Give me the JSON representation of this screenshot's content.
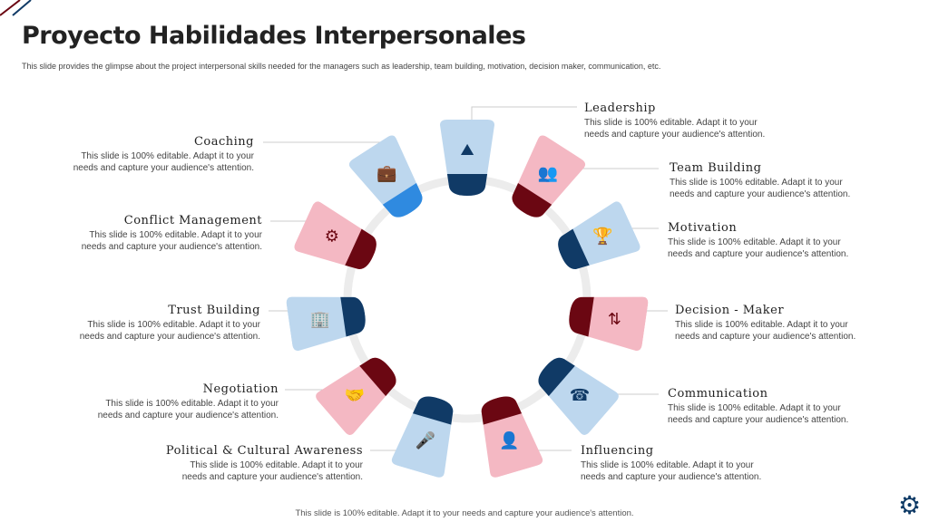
{
  "title": "Proyecto Habilidades Interpersonales",
  "subtitle": "This slide provides the glimpse about the project interpersonal skills needed for the managers such as leadership, team building, motivation, decision maker, communication, etc.",
  "footer": "This slide is 100% editable. Adapt it to your needs and capture your audience's attention.",
  "colors": {
    "blue_light": "#bdd7ee",
    "blue_dark": "#103a66",
    "pink_light": "#f4b8c3",
    "pink_dark": "#6b0712",
    "coaching_accent": "#2f8ae0",
    "ring": "#ececec"
  },
  "skills": [
    {
      "name": "Leadership",
      "desc": "This slide is 100% editable. Adapt it to your needs and capture your audience's attention.",
      "color": "blue",
      "icon": "climbing-team-icon"
    },
    {
      "name": "Team Building",
      "desc": "This slide is 100% editable. Adapt it to your needs and capture your audience's attention.",
      "color": "pink",
      "icon": "team-puzzle-icon"
    },
    {
      "name": "Motivation",
      "desc": "This slide is 100% editable. Adapt it to your needs and capture your audience's attention.",
      "color": "blue",
      "icon": "trophy-icon"
    },
    {
      "name": "Decision - Maker",
      "desc": "This slide is 100% editable. Adapt it to your needs and capture your audience's attention.",
      "color": "pink",
      "icon": "decision-person-icon"
    },
    {
      "name": "Communication",
      "desc": "This slide is 100% editable. Adapt it to your needs and capture your audience's attention.",
      "color": "blue",
      "icon": "telephone-icon"
    },
    {
      "name": "Influencing",
      "desc": "This slide is 100% editable. Adapt it to your needs and capture your audience's attention.",
      "color": "pink",
      "icon": "speaker-audience-icon"
    },
    {
      "name": "Political & Cultural Awareness",
      "desc": "This slide is 100% editable. Adapt it to your needs and capture your audience's attention.",
      "color": "blue",
      "icon": "podium-speaker-icon"
    },
    {
      "name": "Negotiation",
      "desc": "This slide is 100% editable. Adapt it to your needs and capture your audience's attention.",
      "color": "pink",
      "icon": "handshake-icon"
    },
    {
      "name": "Trust Building",
      "desc": "This slide is 100% editable. Adapt it to your needs and capture your audience's attention.",
      "color": "blue",
      "icon": "building-icon"
    },
    {
      "name": "Conflict Management",
      "desc": "This slide is 100% editable. Adapt it to your needs and capture your audience's attention.",
      "color": "pink",
      "icon": "heads-gear-icon"
    },
    {
      "name": "Coaching",
      "desc": "This slide is 100% editable. Adapt it to your needs and capture your audience's attention.",
      "color": "coaching",
      "icon": "briefcase-chart-icon"
    }
  ]
}
